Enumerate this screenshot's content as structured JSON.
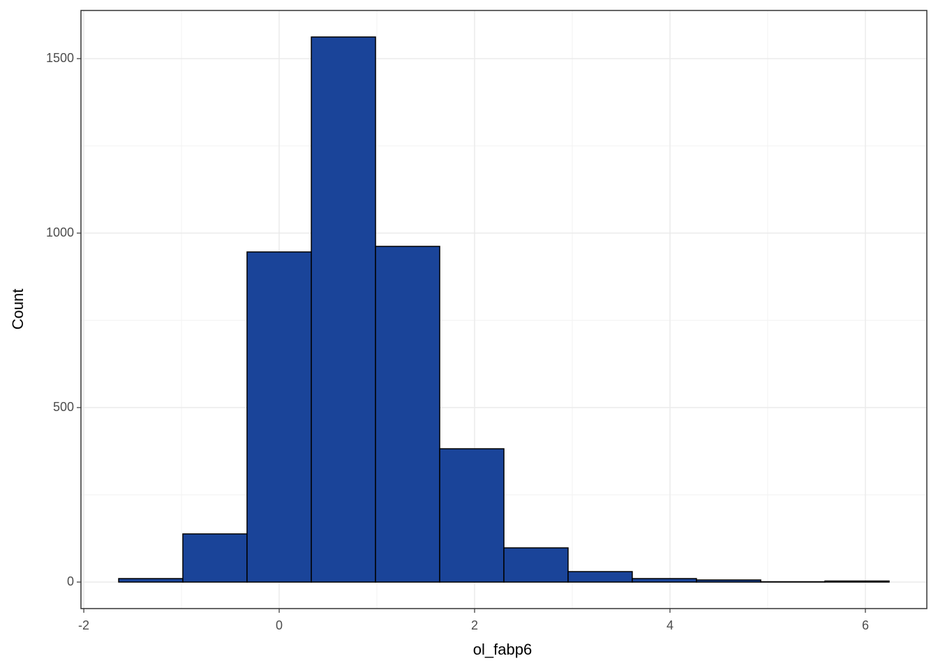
{
  "chart_data": {
    "type": "histogram",
    "x_label": "ol_fabp6",
    "y_label": "Count",
    "bins": [
      -1.643,
      -0.986,
      -0.329,
      0.329,
      0.986,
      1.643,
      2.3,
      2.957,
      3.614,
      4.271,
      4.929,
      5.586,
      6.243
    ],
    "values": [
      10,
      138,
      946,
      1562,
      962,
      382,
      98,
      30,
      10,
      6,
      1,
      3
    ],
    "color": "#1a4499",
    "edgecolor": "#000000",
    "xlim": [
      -2.029,
      6.629
    ],
    "xticks": [
      -2,
      0,
      2,
      4,
      6
    ],
    "ylim": [
      -76,
      1638
    ],
    "yticks": [
      0,
      500,
      1000,
      1500
    ],
    "xminor": [
      -1,
      1,
      3,
      5
    ],
    "yminor": [
      250,
      750,
      1250
    ],
    "grid": true
  }
}
